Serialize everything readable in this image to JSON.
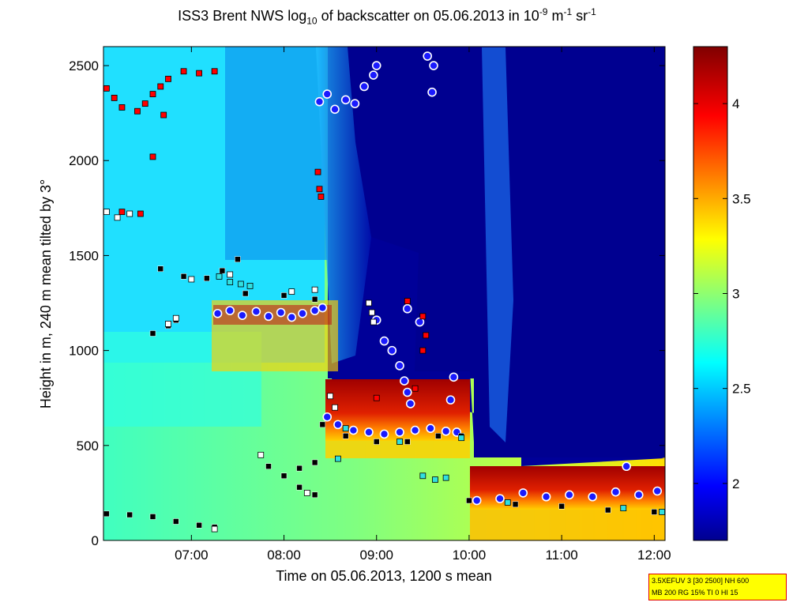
{
  "title_parts": {
    "pre": "ISS3 Brent NWS log",
    "sub1": "10",
    "mid": " of backscatter on 05.06.2013 in 10",
    "sup1": "-9",
    "m": " m",
    "sup2": "-1",
    "sr": " sr",
    "sup3": "-1"
  },
  "info_box": {
    "line1": "3.5XEFUV 3 [30 2500] NH 600",
    "line2": "MB 200 RG 15% TI 0 HI 15"
  },
  "chart_data": {
    "type": "heatmap",
    "xlabel": "Time on 05.06.2013, 1200 s mean",
    "ylabel": "Height in m, 240 m mean tilted by 3°",
    "xlim": [
      "06:03",
      "12:07"
    ],
    "ylim": [
      0,
      2600
    ],
    "x_ticks": [
      "07:00",
      "08:00",
      "09:00",
      "10:00",
      "11:00",
      "12:00"
    ],
    "y_ticks": [
      0,
      500,
      1000,
      1500,
      2000,
      2500
    ],
    "colorbar": {
      "range": [
        1.7,
        4.3
      ],
      "ticks": [
        2,
        2.5,
        3,
        3.5,
        4
      ],
      "colormap": "jet",
      "colors": [
        "#00008f",
        "#0000ff",
        "#00ffff",
        "#ffff00",
        "#ff0000",
        "#800000"
      ]
    },
    "grid": false,
    "regions": [
      {
        "name": "background low level",
        "t": [
          "06:03",
          "12:07"
        ],
        "h": [
          0,
          1000
        ],
        "value": 2.9
      },
      {
        "name": "upper cyan",
        "t": [
          "06:03",
          "08:25"
        ],
        "h": [
          1000,
          2600
        ],
        "value": 2.6
      },
      {
        "name": "clear sky upper",
        "t": [
          "08:25",
          "12:07"
        ],
        "h": [
          1000,
          2600
        ],
        "value": 1.75
      },
      {
        "name": "clear sky mid",
        "t": [
          "10:00",
          "12:07"
        ],
        "h": [
          400,
          1000
        ],
        "value": 1.8
      },
      {
        "name": "cloud layer",
        "t": [
          "08:25",
          "09:55"
        ],
        "h": [
          500,
          820
        ],
        "value": 4.2
      },
      {
        "name": "cloud layer late",
        "t": [
          "10:00",
          "12:07"
        ],
        "h": [
          160,
          380
        ],
        "value": 4.1
      },
      {
        "name": "aerosol layer",
        "t": [
          "07:20",
          "08:25"
        ],
        "h": [
          1000,
          1250
        ],
        "value": 3.6
      }
    ],
    "series": [
      {
        "marker": "cloud-base",
        "color": "#1a1aff",
        "points": [
          [
            "07:17",
            1195
          ],
          [
            "07:25",
            1210
          ],
          [
            "07:33",
            1185
          ],
          [
            "07:42",
            1205
          ],
          [
            "07:50",
            1180
          ],
          [
            "07:58",
            1200
          ],
          [
            "08:05",
            1175
          ],
          [
            "08:12",
            1195
          ],
          [
            "08:20",
            1210
          ],
          [
            "08:25",
            1225
          ],
          [
            "08:23",
            2310
          ],
          [
            "08:28",
            2350
          ],
          [
            "08:33",
            2270
          ],
          [
            "08:40",
            2320
          ],
          [
            "08:46",
            2300
          ],
          [
            "08:52",
            2390
          ],
          [
            "08:58",
            2450
          ],
          [
            "09:00",
            2500
          ],
          [
            "09:33",
            2550
          ],
          [
            "09:37",
            2500
          ],
          [
            "09:36",
            2360
          ],
          [
            "08:28",
            650
          ],
          [
            "08:35",
            610
          ],
          [
            "08:45",
            580
          ],
          [
            "08:55",
            570
          ],
          [
            "09:05",
            560
          ],
          [
            "09:15",
            570
          ],
          [
            "09:25",
            580
          ],
          [
            "09:35",
            590
          ],
          [
            "09:45",
            575
          ],
          [
            "09:52",
            570
          ],
          [
            "09:00",
            1160
          ],
          [
            "09:05",
            1050
          ],
          [
            "09:10",
            1000
          ],
          [
            "09:15",
            920
          ],
          [
            "09:18",
            840
          ],
          [
            "09:20",
            780
          ],
          [
            "09:22",
            720
          ],
          [
            "09:20",
            1220
          ],
          [
            "09:28",
            1150
          ],
          [
            "09:50",
            860
          ],
          [
            "09:48",
            740
          ],
          [
            "10:05",
            210
          ],
          [
            "10:20",
            220
          ],
          [
            "10:35",
            250
          ],
          [
            "10:50",
            230
          ],
          [
            "11:05",
            240
          ],
          [
            "11:20",
            230
          ],
          [
            "11:35",
            255
          ],
          [
            "11:50",
            240
          ],
          [
            "12:02",
            260
          ],
          [
            "11:42",
            390
          ]
        ]
      },
      {
        "marker": "aerosol-layer-black",
        "color": "#000000",
        "points": [
          [
            "06:05",
            140
          ],
          [
            "06:20",
            135
          ],
          [
            "06:35",
            125
          ],
          [
            "06:50",
            100
          ],
          [
            "07:05",
            80
          ],
          [
            "07:15",
            70
          ],
          [
            "06:35",
            1090
          ],
          [
            "06:45",
            1130
          ],
          [
            "06:50",
            1160
          ],
          [
            "06:40",
            1430
          ],
          [
            "06:55",
            1390
          ],
          [
            "07:10",
            1380
          ],
          [
            "07:20",
            1420
          ],
          [
            "07:30",
            1480
          ],
          [
            "07:35",
            1300
          ],
          [
            "08:00",
            1290
          ],
          [
            "08:20",
            1270
          ],
          [
            "07:50",
            390
          ],
          [
            "08:00",
            340
          ],
          [
            "08:10",
            280
          ],
          [
            "08:20",
            240
          ],
          [
            "08:10",
            380
          ],
          [
            "08:20",
            410
          ],
          [
            "08:25",
            610
          ],
          [
            "08:40",
            550
          ],
          [
            "09:00",
            520
          ],
          [
            "09:20",
            520
          ],
          [
            "09:40",
            550
          ],
          [
            "09:55",
            550
          ],
          [
            "10:00",
            210
          ],
          [
            "10:30",
            190
          ],
          [
            "11:00",
            180
          ],
          [
            "11:30",
            160
          ],
          [
            "12:00",
            150
          ]
        ]
      },
      {
        "marker": "red-square",
        "color": "#ff0000",
        "points": [
          [
            "06:05",
            2380
          ],
          [
            "06:10",
            2330
          ],
          [
            "06:15",
            2280
          ],
          [
            "06:25",
            2260
          ],
          [
            "06:30",
            2300
          ],
          [
            "06:35",
            2350
          ],
          [
            "06:40",
            2390
          ],
          [
            "06:45",
            2430
          ],
          [
            "06:55",
            2470
          ],
          [
            "07:05",
            2460
          ],
          [
            "07:15",
            2470
          ],
          [
            "06:35",
            2020
          ],
          [
            "06:42",
            2240
          ],
          [
            "06:15",
            1730
          ],
          [
            "06:27",
            1720
          ],
          [
            "08:22",
            1940
          ],
          [
            "08:23",
            1850
          ],
          [
            "08:24",
            1810
          ],
          [
            "09:20",
            1260
          ],
          [
            "09:30",
            1180
          ],
          [
            "09:32",
            1080
          ],
          [
            "09:30",
            1000
          ],
          [
            "09:00",
            750
          ],
          [
            "09:25",
            800
          ]
        ]
      },
      {
        "marker": "cyan-square",
        "color": "#30e0e0",
        "points": [
          [
            "07:18",
            1390
          ],
          [
            "07:25",
            1360
          ],
          [
            "07:32",
            1350
          ],
          [
            "07:38",
            1340
          ],
          [
            "08:35",
            430
          ],
          [
            "09:30",
            340
          ],
          [
            "09:38",
            320
          ],
          [
            "09:45",
            330
          ],
          [
            "10:25",
            200
          ],
          [
            "11:40",
            170
          ],
          [
            "12:05",
            150
          ],
          [
            "08:40",
            590
          ],
          [
            "09:15",
            520
          ],
          [
            "09:55",
            540
          ]
        ]
      },
      {
        "marker": "white-square",
        "color": "#ffffff",
        "points": [
          [
            "06:05",
            1730
          ],
          [
            "06:12",
            1700
          ],
          [
            "06:20",
            1720
          ],
          [
            "06:45",
            1140
          ],
          [
            "06:50",
            1170
          ],
          [
            "07:00",
            1375
          ],
          [
            "07:25",
            1400
          ],
          [
            "08:05",
            1310
          ],
          [
            "08:20",
            1320
          ],
          [
            "08:55",
            1250
          ],
          [
            "08:57",
            1200
          ],
          [
            "08:58",
            1150
          ],
          [
            "08:30",
            760
          ],
          [
            "08:33",
            700
          ],
          [
            "07:15",
            60
          ],
          [
            "07:45",
            450
          ],
          [
            "08:15",
            250
          ]
        ]
      }
    ]
  }
}
